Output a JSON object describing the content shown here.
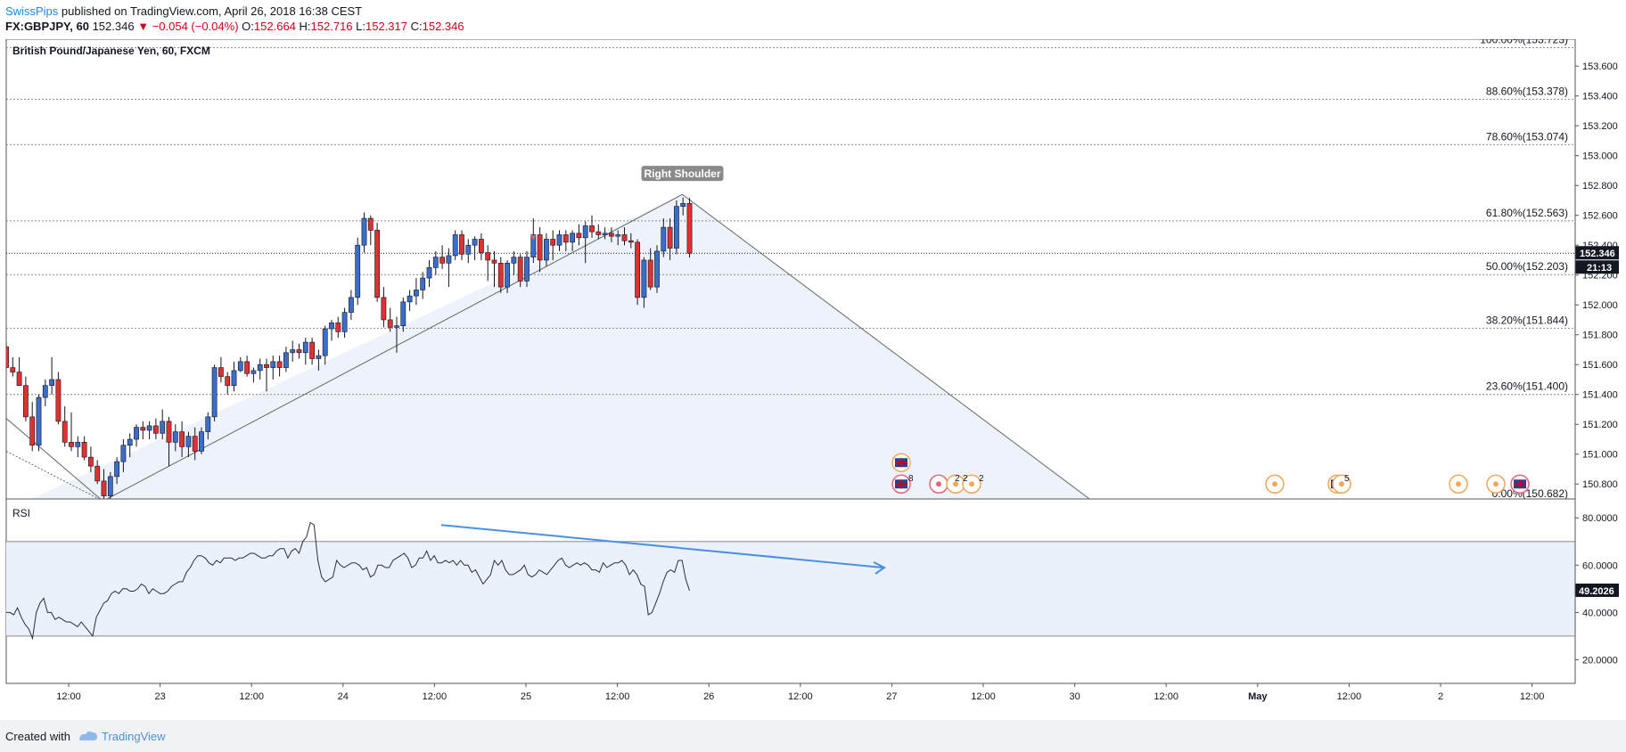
{
  "header": {
    "author": "SwissPips",
    "published": "published on TradingView.com, April 26, 2018 16:38 CEST",
    "symbol": "FX:GBPJPY, 60",
    "last": "152.346",
    "change": "−0.054 (−0.04%)",
    "ohlc": {
      "o_label": "O:",
      "o": "152.664",
      "h_label": "H:",
      "h": "152.716",
      "l_label": "L:",
      "l": "152.317",
      "c_label": "C:",
      "c": "152.346"
    }
  },
  "footer": {
    "created": "Created with",
    "brand": "TradingView"
  },
  "colors": {
    "bull": "#3b6ec9",
    "bear": "#e03131",
    "text": "#131722",
    "rsi_band": "#eaf1fb",
    "trend_arrow": "#4a90e2",
    "price_badge": "#131722"
  },
  "chart_data": [
    {
      "type": "candlestick",
      "title": "British Pound/Japanese Yen, 60, FXCM",
      "ylim": [
        150.7,
        153.78
      ],
      "yticks": [
        "153.600",
        "153.400",
        "153.200",
        "153.000",
        "152.800",
        "152.600",
        "152.400",
        "152.200",
        "152.000",
        "151.800",
        "151.600",
        "151.400",
        "151.200",
        "151.000",
        "150.800"
      ],
      "xticks": [
        "12:00",
        "23",
        "12:00",
        "24",
        "12:00",
        "25",
        "12:00",
        "26",
        "12:00",
        "27",
        "12:00",
        "30",
        "12:00",
        "May",
        "12:00",
        "2",
        "12:00"
      ],
      "last_price": "152.346",
      "countdown": "21:13",
      "fib_levels": [
        {
          "label": "100.00%(153.723)",
          "value": 153.723
        },
        {
          "label": "88.60%(153.378)",
          "value": 153.378
        },
        {
          "label": "78.60%(153.074)",
          "value": 153.074
        },
        {
          "label": "61.80%(152.563)",
          "value": 152.563
        },
        {
          "label": "50.00%(152.203)",
          "value": 152.203
        },
        {
          "label": "38.20%(151.844)",
          "value": 151.844
        },
        {
          "label": "23.60%(151.400)",
          "value": 151.4
        },
        {
          "label": "0.00%(150.682)",
          "value": 150.682
        }
      ],
      "annotation": "Right Shoulder",
      "event_counts": [
        "8",
        "2",
        "2",
        "2",
        "5"
      ],
      "candles": [
        {
          "o": 151.72,
          "h": 151.75,
          "l": 151.58,
          "c": 151.58
        },
        {
          "o": 151.58,
          "h": 151.65,
          "l": 151.52,
          "c": 151.55
        },
        {
          "o": 151.55,
          "h": 151.65,
          "l": 151.48,
          "c": 151.46
        },
        {
          "o": 151.46,
          "h": 151.52,
          "l": 151.22,
          "c": 151.25
        },
        {
          "o": 151.25,
          "h": 151.35,
          "l": 151.02,
          "c": 151.06
        },
        {
          "o": 151.06,
          "h": 151.4,
          "l": 151.02,
          "c": 151.38
        },
        {
          "o": 151.38,
          "h": 151.5,
          "l": 151.32,
          "c": 151.46
        },
        {
          "o": 151.46,
          "h": 151.65,
          "l": 151.4,
          "c": 151.5
        },
        {
          "o": 151.5,
          "h": 151.55,
          "l": 151.2,
          "c": 151.22
        },
        {
          "o": 151.22,
          "h": 151.32,
          "l": 151.05,
          "c": 151.08
        },
        {
          "o": 151.08,
          "h": 151.28,
          "l": 151.02,
          "c": 151.05
        },
        {
          "o": 151.05,
          "h": 151.12,
          "l": 150.98,
          "c": 151.08
        },
        {
          "o": 151.08,
          "h": 151.12,
          "l": 150.96,
          "c": 150.98
        },
        {
          "o": 150.98,
          "h": 151.05,
          "l": 150.88,
          "c": 150.92
        },
        {
          "o": 150.92,
          "h": 150.96,
          "l": 150.8,
          "c": 150.82
        },
        {
          "o": 150.82,
          "h": 150.9,
          "l": 150.68,
          "c": 150.72
        },
        {
          "o": 150.72,
          "h": 150.88,
          "l": 150.66,
          "c": 150.85
        },
        {
          "o": 150.85,
          "h": 150.98,
          "l": 150.8,
          "c": 150.95
        },
        {
          "o": 150.95,
          "h": 151.1,
          "l": 150.88,
          "c": 151.06
        },
        {
          "o": 151.06,
          "h": 151.14,
          "l": 150.98,
          "c": 151.1
        },
        {
          "o": 151.1,
          "h": 151.2,
          "l": 151.05,
          "c": 151.18
        },
        {
          "o": 151.18,
          "h": 151.22,
          "l": 151.1,
          "c": 151.16
        },
        {
          "o": 151.16,
          "h": 151.22,
          "l": 151.1,
          "c": 151.19
        },
        {
          "o": 151.19,
          "h": 151.24,
          "l": 151.1,
          "c": 151.14
        },
        {
          "o": 151.14,
          "h": 151.3,
          "l": 151.1,
          "c": 151.22
        },
        {
          "o": 151.22,
          "h": 151.25,
          "l": 150.92,
          "c": 151.08
        },
        {
          "o": 151.08,
          "h": 151.2,
          "l": 151.02,
          "c": 151.15
        },
        {
          "o": 151.15,
          "h": 151.22,
          "l": 150.98,
          "c": 151.05
        },
        {
          "o": 151.05,
          "h": 151.15,
          "l": 150.98,
          "c": 151.12
        },
        {
          "o": 151.12,
          "h": 151.18,
          "l": 150.96,
          "c": 151.02
        },
        {
          "o": 151.02,
          "h": 151.18,
          "l": 151.0,
          "c": 151.15
        },
        {
          "o": 151.15,
          "h": 151.28,
          "l": 151.1,
          "c": 151.25
        },
        {
          "o": 151.25,
          "h": 151.6,
          "l": 151.22,
          "c": 151.58
        },
        {
          "o": 151.58,
          "h": 151.65,
          "l": 151.48,
          "c": 151.52
        },
        {
          "o": 151.52,
          "h": 151.55,
          "l": 151.4,
          "c": 151.46
        },
        {
          "o": 151.46,
          "h": 151.62,
          "l": 151.42,
          "c": 151.56
        },
        {
          "o": 151.56,
          "h": 151.65,
          "l": 151.55,
          "c": 151.62
        },
        {
          "o": 151.62,
          "h": 151.66,
          "l": 151.52,
          "c": 151.54
        },
        {
          "o": 151.54,
          "h": 151.58,
          "l": 151.48,
          "c": 151.56
        },
        {
          "o": 151.56,
          "h": 151.64,
          "l": 151.5,
          "c": 151.6
        },
        {
          "o": 151.6,
          "h": 151.64,
          "l": 151.42,
          "c": 151.58
        },
        {
          "o": 151.58,
          "h": 151.66,
          "l": 151.5,
          "c": 151.62
        },
        {
          "o": 151.62,
          "h": 151.66,
          "l": 151.52,
          "c": 151.58
        },
        {
          "o": 151.58,
          "h": 151.72,
          "l": 151.55,
          "c": 151.68
        },
        {
          "o": 151.68,
          "h": 151.76,
          "l": 151.62,
          "c": 151.7
        },
        {
          "o": 151.7,
          "h": 151.74,
          "l": 151.64,
          "c": 151.68
        },
        {
          "o": 151.68,
          "h": 151.78,
          "l": 151.6,
          "c": 151.75
        },
        {
          "o": 151.75,
          "h": 151.78,
          "l": 151.6,
          "c": 151.64
        },
        {
          "o": 151.64,
          "h": 151.7,
          "l": 151.56,
          "c": 151.66
        },
        {
          "o": 151.66,
          "h": 151.86,
          "l": 151.6,
          "c": 151.84
        },
        {
          "o": 151.84,
          "h": 151.9,
          "l": 151.76,
          "c": 151.88
        },
        {
          "o": 151.88,
          "h": 151.92,
          "l": 151.78,
          "c": 151.82
        },
        {
          "o": 151.82,
          "h": 151.98,
          "l": 151.78,
          "c": 151.95
        },
        {
          "o": 151.95,
          "h": 152.1,
          "l": 151.9,
          "c": 152.05
        },
        {
          "o": 152.05,
          "h": 152.45,
          "l": 152.0,
          "c": 152.4
        },
        {
          "o": 152.4,
          "h": 152.62,
          "l": 152.35,
          "c": 152.58
        },
        {
          "o": 152.58,
          "h": 152.6,
          "l": 152.4,
          "c": 152.5
        },
        {
          "o": 152.5,
          "h": 152.55,
          "l": 152.02,
          "c": 152.05
        },
        {
          "o": 152.05,
          "h": 152.12,
          "l": 151.85,
          "c": 151.9
        },
        {
          "o": 151.9,
          "h": 151.98,
          "l": 151.82,
          "c": 151.85
        },
        {
          "o": 151.85,
          "h": 151.92,
          "l": 151.68,
          "c": 151.86
        },
        {
          "o": 151.86,
          "h": 152.05,
          "l": 151.82,
          "c": 152.02
        },
        {
          "o": 152.02,
          "h": 152.1,
          "l": 151.96,
          "c": 152.06
        },
        {
          "o": 152.06,
          "h": 152.18,
          "l": 152.0,
          "c": 152.1
        },
        {
          "o": 152.1,
          "h": 152.22,
          "l": 152.04,
          "c": 152.18
        },
        {
          "o": 152.18,
          "h": 152.3,
          "l": 152.12,
          "c": 152.25
        },
        {
          "o": 152.25,
          "h": 152.36,
          "l": 152.2,
          "c": 152.32
        },
        {
          "o": 152.32,
          "h": 152.4,
          "l": 152.24,
          "c": 152.28
        },
        {
          "o": 152.28,
          "h": 152.38,
          "l": 152.12,
          "c": 152.33
        },
        {
          "o": 152.33,
          "h": 152.5,
          "l": 152.3,
          "c": 152.47
        },
        {
          "o": 152.47,
          "h": 152.5,
          "l": 152.3,
          "c": 152.34
        },
        {
          "o": 152.34,
          "h": 152.44,
          "l": 152.28,
          "c": 152.4
        },
        {
          "o": 152.4,
          "h": 152.46,
          "l": 152.3,
          "c": 152.44
        },
        {
          "o": 152.44,
          "h": 152.48,
          "l": 152.3,
          "c": 152.35
        },
        {
          "o": 152.35,
          "h": 152.4,
          "l": 152.16,
          "c": 152.3
        },
        {
          "o": 152.3,
          "h": 152.36,
          "l": 152.12,
          "c": 152.28
        },
        {
          "o": 152.28,
          "h": 152.32,
          "l": 152.08,
          "c": 152.12
        },
        {
          "o": 152.12,
          "h": 152.3,
          "l": 152.08,
          "c": 152.28
        },
        {
          "o": 152.28,
          "h": 152.36,
          "l": 152.2,
          "c": 152.32
        },
        {
          "o": 152.32,
          "h": 152.34,
          "l": 152.12,
          "c": 152.16
        },
        {
          "o": 152.16,
          "h": 152.36,
          "l": 152.12,
          "c": 152.32
        },
        {
          "o": 152.32,
          "h": 152.58,
          "l": 152.28,
          "c": 152.47
        },
        {
          "o": 152.47,
          "h": 152.52,
          "l": 152.22,
          "c": 152.3
        },
        {
          "o": 152.3,
          "h": 152.48,
          "l": 152.26,
          "c": 152.44
        },
        {
          "o": 152.44,
          "h": 152.5,
          "l": 152.3,
          "c": 152.4
        },
        {
          "o": 152.4,
          "h": 152.5,
          "l": 152.36,
          "c": 152.47
        },
        {
          "o": 152.47,
          "h": 152.5,
          "l": 152.36,
          "c": 152.42
        },
        {
          "o": 152.42,
          "h": 152.5,
          "l": 152.36,
          "c": 152.48
        },
        {
          "o": 152.48,
          "h": 152.54,
          "l": 152.4,
          "c": 152.45
        },
        {
          "o": 152.45,
          "h": 152.56,
          "l": 152.28,
          "c": 152.53
        },
        {
          "o": 152.53,
          "h": 152.6,
          "l": 152.45,
          "c": 152.49
        },
        {
          "o": 152.49,
          "h": 152.54,
          "l": 152.44,
          "c": 152.47
        },
        {
          "o": 152.47,
          "h": 152.52,
          "l": 152.44,
          "c": 152.48
        },
        {
          "o": 152.48,
          "h": 152.52,
          "l": 152.42,
          "c": 152.46
        },
        {
          "o": 152.46,
          "h": 152.5,
          "l": 152.4,
          "c": 152.47
        },
        {
          "o": 152.47,
          "h": 152.52,
          "l": 152.4,
          "c": 152.43
        },
        {
          "o": 152.43,
          "h": 152.48,
          "l": 152.38,
          "c": 152.42
        },
        {
          "o": 152.42,
          "h": 152.44,
          "l": 152.0,
          "c": 152.05
        },
        {
          "o": 152.05,
          "h": 152.32,
          "l": 151.98,
          "c": 152.3
        },
        {
          "o": 152.3,
          "h": 152.38,
          "l": 152.1,
          "c": 152.12
        },
        {
          "o": 152.12,
          "h": 152.4,
          "l": 152.08,
          "c": 152.36
        },
        {
          "o": 152.36,
          "h": 152.58,
          "l": 152.32,
          "c": 152.52
        },
        {
          "o": 152.52,
          "h": 152.58,
          "l": 152.3,
          "c": 152.38
        },
        {
          "o": 152.38,
          "h": 152.7,
          "l": 152.34,
          "c": 152.66
        },
        {
          "o": 152.66,
          "h": 152.72,
          "l": 152.6,
          "c": 152.68
        },
        {
          "o": 152.68,
          "h": 152.716,
          "l": 152.317,
          "c": 152.346
        }
      ]
    },
    {
      "type": "line",
      "title": "RSI",
      "ylim": [
        10,
        88
      ],
      "yticks": [
        "80.0000",
        "60.0000",
        "40.0000",
        "20.0000"
      ],
      "band": [
        30,
        70
      ],
      "last_value": "49.2026",
      "values": [
        40,
        40,
        39,
        42,
        38,
        35,
        33,
        29,
        40,
        44,
        46,
        40,
        40,
        37,
        38,
        37,
        36,
        36,
        35,
        34,
        36,
        34,
        32,
        30,
        38,
        41,
        44,
        45,
        48,
        49,
        48,
        50,
        50,
        49,
        49,
        50,
        52,
        51,
        48,
        50,
        49,
        48,
        48,
        49,
        51,
        52,
        53,
        53,
        57,
        59,
        62,
        64,
        64,
        63,
        61,
        60,
        62,
        61,
        63,
        63,
        63,
        62,
        63,
        63,
        64,
        65,
        65,
        64,
        63,
        63,
        64,
        64,
        66,
        67,
        67,
        63,
        66,
        67,
        65,
        70,
        72,
        78,
        77,
        62,
        55,
        53,
        54,
        55,
        62,
        60,
        59,
        60,
        61,
        61,
        60,
        58,
        59,
        55,
        56,
        60,
        60,
        59,
        59,
        62,
        63,
        64,
        65,
        63,
        59,
        60,
        63,
        63,
        66,
        62,
        64,
        61,
        61,
        62,
        61,
        62,
        60,
        62,
        60,
        60,
        57,
        58,
        55,
        52,
        54,
        56,
        62,
        60,
        62,
        58,
        56,
        56,
        57,
        58,
        60,
        56,
        55,
        56,
        58,
        57,
        56,
        58,
        60,
        62,
        63,
        60,
        59,
        60,
        61,
        60,
        61,
        60,
        58,
        58,
        57,
        61,
        59,
        60,
        61,
        61,
        62,
        60,
        56,
        58,
        56,
        52,
        51,
        39,
        40,
        44,
        48,
        53,
        57,
        58,
        57,
        62,
        62,
        54,
        49.2
      ]
    }
  ]
}
